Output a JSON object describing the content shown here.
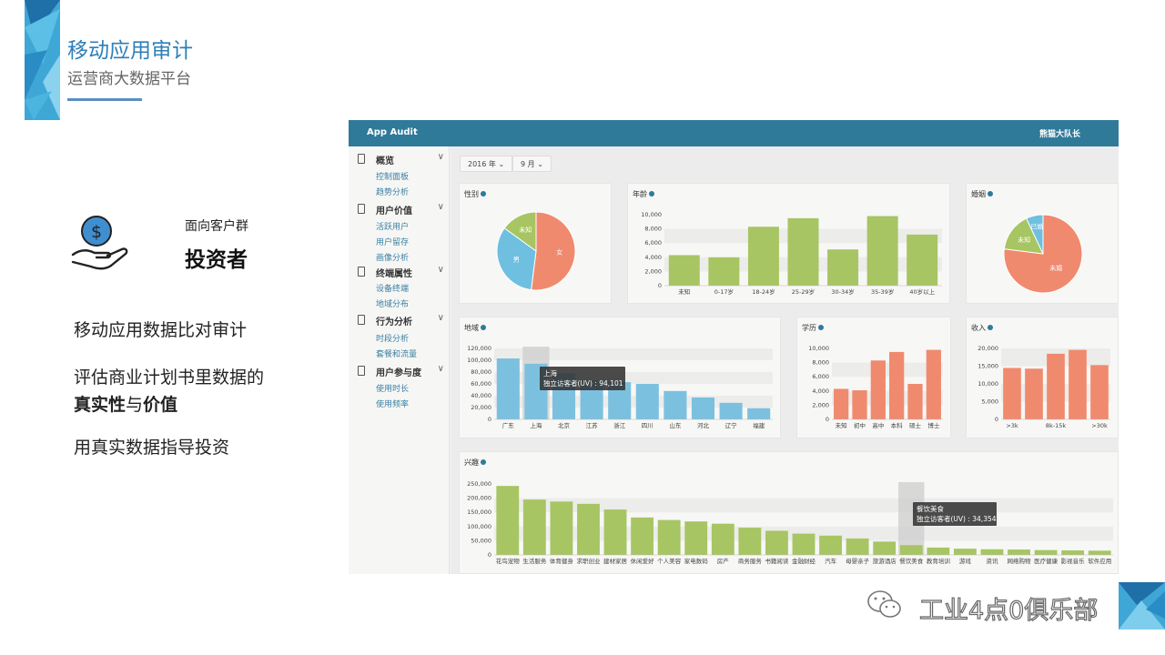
{
  "slide": {
    "title": "移动应用审计",
    "subtitle": "运营商大数据平台",
    "audience_label": "面向客户群",
    "audience_value": "投资者",
    "point1": "移动应用数据比对审计",
    "point2_line1": "评估商业计划书里数据的",
    "point2_strong1": "真实性",
    "point2_mid": "与",
    "point2_strong2": "价值",
    "point3": "用真实数据指导投资",
    "watermark": "工业4点0俱乐部",
    "accent": "#2e7fb8"
  },
  "app": {
    "brand": "App Audit",
    "user": "熊猫大队长",
    "header_color": "#2f7a99",
    "filters": {
      "year": "2016 年",
      "month": "9 月"
    },
    "sidebar": [
      {
        "label": "概览",
        "items": [
          "控制面板",
          "趋势分析"
        ]
      },
      {
        "label": "用户价值",
        "items": [
          "活跃用户",
          "用户留存",
          "画像分析"
        ]
      },
      {
        "label": "终端属性",
        "items": [
          "设备终端",
          "地域分布"
        ]
      },
      {
        "label": "行为分析",
        "items": [
          "时段分析",
          "套餐和流量"
        ]
      },
      {
        "label": "用户参与度",
        "items": [
          "使用时长",
          "使用频率"
        ]
      }
    ]
  },
  "chart_data": [
    {
      "id": "gender",
      "type": "pie",
      "title": "性别",
      "slices": [
        {
          "label": "女",
          "value": 52,
          "color": "#f08a6e"
        },
        {
          "label": "男",
          "value": 33,
          "color": "#6fbfe0"
        },
        {
          "label": "未知",
          "value": 15,
          "color": "#a7c563"
        }
      ]
    },
    {
      "id": "age",
      "type": "bar",
      "title": "年龄",
      "color": "#a7c563",
      "categories": [
        "未知",
        "0-17岁",
        "18-24岁",
        "25-29岁",
        "30-34岁",
        "35-39岁",
        "40岁以上"
      ],
      "values": [
        4300,
        4000,
        8300,
        9500,
        5100,
        9800,
        7200
      ],
      "ylim": [
        0,
        10000
      ],
      "yticks": [
        {
          "v": 0,
          "t": "0"
        },
        {
          "v": 2000,
          "t": "2,000"
        },
        {
          "v": 4000,
          "t": "4,000"
        },
        {
          "v": 6000,
          "t": "6,000"
        },
        {
          "v": 8000,
          "t": "8,000"
        },
        {
          "v": 10000,
          "t": "10,000"
        }
      ]
    },
    {
      "id": "marriage",
      "type": "pie",
      "title": "婚姻",
      "slices": [
        {
          "label": "未婚",
          "value": 77,
          "color": "#f08a6e"
        },
        {
          "label": "未知",
          "value": 16,
          "color": "#a7c563"
        },
        {
          "label": "已婚",
          "value": 7,
          "color": "#6fbfe0"
        }
      ]
    },
    {
      "id": "region",
      "type": "bar",
      "title": "地域",
      "color": "#7cc0e0",
      "categories": [
        "广东",
        "上海",
        "北京",
        "江苏",
        "浙江",
        "四川",
        "山东",
        "河北",
        "辽宁",
        "福建"
      ],
      "values": [
        103000,
        94101,
        78000,
        66000,
        63000,
        60000,
        48000,
        37000,
        28000,
        19000
      ],
      "ylim": [
        0,
        120000
      ],
      "yticks": [
        {
          "v": 0,
          "t": "0"
        },
        {
          "v": 20000,
          "t": "20,000"
        },
        {
          "v": 40000,
          "t": "40,000"
        },
        {
          "v": 60000,
          "t": "60,000"
        },
        {
          "v": 80000,
          "t": "80,000"
        },
        {
          "v": 100000,
          "t": "100,000"
        },
        {
          "v": 120000,
          "t": "120,000"
        }
      ],
      "highlight": 1,
      "tooltip": {
        "line1": "上海",
        "line2": "独立访客者(UV) : 94,101"
      }
    },
    {
      "id": "education",
      "type": "bar",
      "title": "学历",
      "color": "#f08a6e",
      "categories": [
        "未知",
        "初中",
        "高中",
        "本科",
        "硕士",
        "博士"
      ],
      "values": [
        4300,
        4100,
        8300,
        9500,
        5000,
        9800
      ],
      "ylim": [
        0,
        10000
      ],
      "yticks": [
        {
          "v": 0,
          "t": "0"
        },
        {
          "v": 2000,
          "t": "2,000"
        },
        {
          "v": 4000,
          "t": "4,000"
        },
        {
          "v": 6000,
          "t": "6,000"
        },
        {
          "v": 8000,
          "t": "8,000"
        },
        {
          "v": 10000,
          "t": "10,000"
        }
      ]
    },
    {
      "id": "income",
      "type": "bar",
      "title": "收入",
      "color": "#f08a6e",
      "categories": [
        ">3k",
        "",
        "8k-15k",
        "",
        ">30k"
      ],
      "values": [
        14500,
        14300,
        18500,
        19600,
        15300
      ],
      "ylim": [
        0,
        20000
      ],
      "yticks": [
        {
          "v": 0,
          "t": "0"
        },
        {
          "v": 5000,
          "t": "5,000"
        },
        {
          "v": 10000,
          "t": "10,000"
        },
        {
          "v": 15000,
          "t": "15,000"
        },
        {
          "v": 20000,
          "t": "20,000"
        }
      ]
    },
    {
      "id": "interest",
      "type": "bar",
      "title": "兴趣",
      "color": "#a7c563",
      "categories": [
        "花鸟宠物",
        "生活服务",
        "体育健身",
        "求职创业",
        "建材家居",
        "休闲爱好",
        "个人美容",
        "家电数码",
        "房产",
        "商务服务",
        "书籍阅读",
        "金融财经",
        "汽车",
        "母婴亲子",
        "旅游酒店",
        "餐饮美食",
        "教育培训",
        "游戏",
        "资讯",
        "网络购物",
        "医疗健康",
        "影视音乐",
        "软件应用"
      ],
      "values": [
        243000,
        195000,
        188000,
        180000,
        160000,
        132000,
        123000,
        118000,
        110000,
        96000,
        85000,
        75000,
        68000,
        58000,
        47000,
        34354,
        26000,
        22000,
        20000,
        19000,
        17000,
        16000,
        15000
      ],
      "ylim": [
        0,
        250000
      ],
      "yticks": [
        {
          "v": 0,
          "t": "0"
        },
        {
          "v": 50000,
          "t": "50,000"
        },
        {
          "v": 100000,
          "t": "100,000"
        },
        {
          "v": 150000,
          "t": "150,000"
        },
        {
          "v": 200000,
          "t": "200,000"
        },
        {
          "v": 250000,
          "t": "250,000"
        }
      ],
      "highlight": 15,
      "tooltip": {
        "line1": "餐饮美食",
        "line2": "独立访客者(UV) : 34,354"
      }
    }
  ]
}
